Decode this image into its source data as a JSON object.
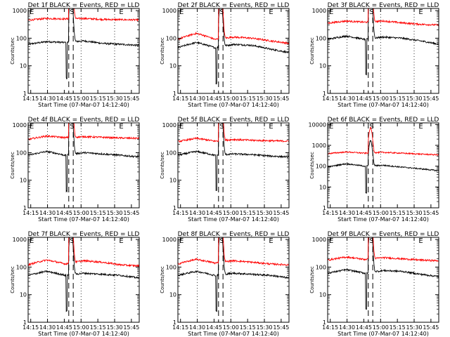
{
  "figure": {
    "xlabel": "Start Time (07-Mar-07 14:12:40)",
    "ylabel": "Counts/sec",
    "x_ticks": [
      "14:15",
      "14:30",
      "14:45",
      "15:00",
      "15:15",
      "15:30",
      "15:45"
    ],
    "y_ticks": [
      "1",
      "10",
      "100",
      "1000"
    ],
    "y_ticks_det6": [
      "1",
      "10",
      "100",
      "1000",
      "10000"
    ],
    "marker_labels": [
      "E",
      "S",
      "E"
    ],
    "series_colors": {
      "events": "#000000",
      "lld": "#ff0000"
    }
  },
  "chart_data": [
    {
      "type": "line",
      "title": "Det 1f BLACK = Events, RED = LLD",
      "xlim": [
        "14:12:40",
        "15:52"
      ],
      "ylim": [
        1,
        1200
      ],
      "yscale": "log",
      "series": [
        {
          "values_baseline": [
            60,
            75,
            70,
            80,
            65,
            60,
            55
          ]
        },
        {
          "values_baseline": [
            450,
            520,
            500,
            520,
            480,
            470,
            460
          ]
        }
      ]
    },
    {
      "type": "line",
      "title": "Det 2f BLACK = Events, RED = LLD",
      "xlim": [
        "14:12:40",
        "15:52"
      ],
      "ylim": [
        1,
        1200
      ],
      "yscale": "log",
      "series": [
        {
          "values_baseline": [
            45,
            70,
            45,
            60,
            55,
            40,
            30
          ]
        },
        {
          "values_baseline": [
            90,
            150,
            90,
            110,
            100,
            80,
            65
          ]
        }
      ]
    },
    {
      "type": "line",
      "title": "Det 3f BLACK = Events, RED = LLD",
      "xlim": [
        "14:12:40",
        "15:52"
      ],
      "ylim": [
        1,
        1200
      ],
      "yscale": "log",
      "series": [
        {
          "values_baseline": [
            90,
            120,
            90,
            110,
            100,
            80,
            60
          ]
        },
        {
          "values_baseline": [
            350,
            420,
            380,
            420,
            360,
            320,
            300
          ]
        }
      ]
    },
    {
      "type": "line",
      "title": "Det 4f BLACK = Events, RED = LLD",
      "xlim": [
        "14:12:40",
        "15:52"
      ],
      "ylim": [
        1,
        1200
      ],
      "yscale": "log",
      "series": [
        {
          "values_baseline": [
            80,
            110,
            80,
            100,
            90,
            80,
            70
          ]
        },
        {
          "values_baseline": [
            300,
            400,
            350,
            380,
            360,
            340,
            330
          ]
        }
      ]
    },
    {
      "type": "line",
      "title": "Det 5f BLACK = Events, RED = LLD",
      "xlim": [
        "14:12:40",
        "15:52"
      ],
      "ylim": [
        1,
        1200
      ],
      "yscale": "log",
      "series": [
        {
          "values_baseline": [
            80,
            110,
            80,
            90,
            85,
            75,
            70
          ]
        },
        {
          "values_baseline": [
            250,
            330,
            260,
            300,
            280,
            270,
            260
          ]
        }
      ]
    },
    {
      "type": "line",
      "title": "Det 6f BLACK = Events, RED = LLD",
      "xlim": [
        "14:12:40",
        "15:52"
      ],
      "ylim": [
        1,
        12000
      ],
      "yscale": "log",
      "series": [
        {
          "values_baseline": [
            90,
            130,
            100,
            110,
            90,
            75,
            60
          ]
        },
        {
          "values_baseline": [
            400,
            480,
            420,
            460,
            420,
            380,
            350
          ]
        }
      ]
    },
    {
      "type": "line",
      "title": "Det 7f BLACK = Events, RED = LLD",
      "xlim": [
        "14:12:40",
        "15:52"
      ],
      "ylim": [
        1,
        1200
      ],
      "yscale": "log",
      "series": [
        {
          "values_baseline": [
            50,
            70,
            50,
            60,
            55,
            50,
            40
          ]
        },
        {
          "values_baseline": [
            120,
            180,
            130,
            170,
            150,
            120,
            110
          ]
        }
      ]
    },
    {
      "type": "line",
      "title": "Det 8f BLACK = Events, RED = LLD",
      "xlim": [
        "14:12:40",
        "15:52"
      ],
      "ylim": [
        1,
        1200
      ],
      "yscale": "log",
      "series": [
        {
          "values_baseline": [
            50,
            70,
            50,
            60,
            55,
            50,
            40
          ]
        },
        {
          "values_baseline": [
            130,
            190,
            140,
            170,
            150,
            130,
            120
          ]
        }
      ]
    },
    {
      "type": "line",
      "title": "Det 9f BLACK = Events, RED = LLD",
      "xlim": [
        "14:12:40",
        "15:52"
      ],
      "ylim": [
        1,
        1200
      ],
      "yscale": "log",
      "series": [
        {
          "values_baseline": [
            60,
            80,
            60,
            75,
            70,
            55,
            45
          ]
        },
        {
          "values_baseline": [
            180,
            230,
            190,
            220,
            200,
            180,
            170
          ]
        }
      ]
    }
  ]
}
